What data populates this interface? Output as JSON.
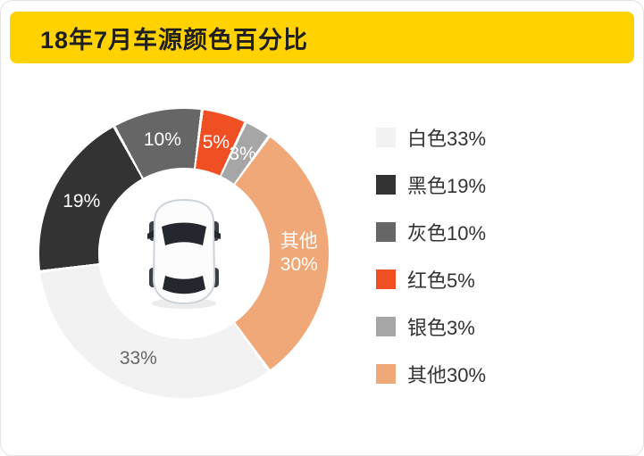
{
  "header": {
    "title": "18年7月车源颜色百分比",
    "background": "#FFD200",
    "text_color": "#1F1F1F"
  },
  "chart_data": {
    "type": "pie",
    "variant": "donut",
    "title": "18年7月车源颜色百分比",
    "direction": "clockwise",
    "start_angle_deg_clockwise_from_top": 144,
    "inner_radius_ratio": 0.59,
    "gap_deg": 1.2,
    "legend_position": "right",
    "units": "%",
    "center_image": "car-top-view",
    "series": [
      {
        "name": "白色",
        "value": 33,
        "color": "#F2F2F2",
        "slice_label": "33%",
        "slice_label_color": "#666666",
        "legend_label": "白色33%"
      },
      {
        "name": "黑色",
        "value": 19,
        "color": "#333333",
        "slice_label": "19%",
        "slice_label_color": "#FFFFFF",
        "legend_label": "黑色19%"
      },
      {
        "name": "灰色",
        "value": 10,
        "color": "#666666",
        "slice_label": "10%",
        "slice_label_color": "#FFFFFF",
        "legend_label": "灰色10%"
      },
      {
        "name": "红色",
        "value": 5,
        "color": "#F04E23",
        "slice_label": "5%",
        "slice_label_color": "#FFFFFF",
        "legend_label": "红色5%"
      },
      {
        "name": "银色",
        "value": 3,
        "color": "#A6A6A6",
        "slice_label": "3%",
        "slice_label_color": "#FFFFFF",
        "legend_label": "银色3%"
      },
      {
        "name": "其他",
        "value": 30,
        "color": "#F1A878",
        "slice_label": "其他\n30%",
        "slice_label_color": "#FFFFFF",
        "legend_label": "其他30%"
      }
    ]
  }
}
